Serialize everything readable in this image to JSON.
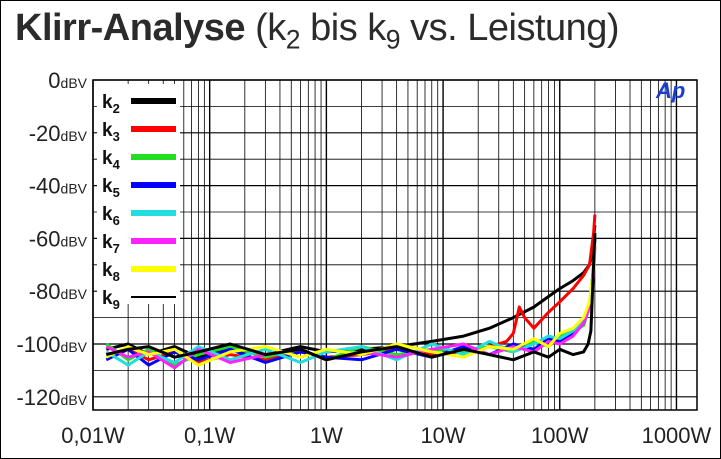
{
  "header": {
    "title_main": "Klirr-Analyse",
    "title_paren_open": "(k",
    "title_sub1": "2",
    "title_mid": " bis k",
    "title_sub2": "9",
    "title_tail": " vs. Leistung)"
  },
  "chart_data": {
    "type": "line",
    "title": "Klirr-Analyse (k2 bis k9 vs. Leistung)",
    "xscale": "log",
    "xlim": [
      0.01,
      1500
    ],
    "ylim": [
      -125,
      0
    ],
    "x_ticks": [
      {
        "value": 0.01,
        "label": "0,01W"
      },
      {
        "value": 0.1,
        "label": "0,1W"
      },
      {
        "value": 1,
        "label": "1W"
      },
      {
        "value": 10,
        "label": "10W"
      },
      {
        "value": 100,
        "label": "100W"
      },
      {
        "value": 1000,
        "label": "1000W"
      }
    ],
    "y_ticks": [
      {
        "value": 0,
        "num": "0",
        "unit": "dBV"
      },
      {
        "value": -20,
        "num": "-20",
        "unit": "dBV"
      },
      {
        "value": -40,
        "num": "-40",
        "unit": "dBV"
      },
      {
        "value": -60,
        "num": "-60",
        "unit": "dBV"
      },
      {
        "value": -80,
        "num": "-80",
        "unit": "dBV"
      },
      {
        "value": -100,
        "num": "-100",
        "unit": "dBV"
      },
      {
        "value": -120,
        "num": "-120",
        "unit": "dBV"
      }
    ],
    "grid": true,
    "legend_position": "top-left",
    "logo": "Ap",
    "series": [
      {
        "name": "k2",
        "label_base": "k",
        "label_sub": "2",
        "color": "#000000",
        "x": [
          0.013,
          0.02,
          0.03,
          0.05,
          0.08,
          0.15,
          0.3,
          0.6,
          1,
          2,
          4,
          8,
          15,
          25,
          40,
          60,
          80,
          100,
          130,
          160,
          180,
          190,
          195,
          200
        ],
        "y": [
          -102,
          -100,
          -104,
          -101,
          -105,
          -102,
          -104,
          -101,
          -103,
          -102,
          -101,
          -99,
          -97,
          -94,
          -90,
          -86,
          -82,
          -79,
          -76,
          -73,
          -70,
          -66,
          -60,
          -55
        ]
      },
      {
        "name": "k3",
        "label_base": "k",
        "label_sub": "3",
        "color": "#ff0000",
        "x": [
          0.013,
          0.02,
          0.03,
          0.05,
          0.08,
          0.15,
          0.3,
          0.6,
          1,
          2,
          4,
          8,
          15,
          25,
          35,
          40,
          45,
          50,
          60,
          80,
          100,
          130,
          160,
          180,
          195,
          200
        ],
        "y": [
          -104,
          -102,
          -106,
          -103,
          -107,
          -104,
          -106,
          -103,
          -105,
          -104,
          -102,
          -104,
          -103,
          -101,
          -99,
          -96,
          -86,
          -90,
          -94,
          -88,
          -84,
          -79,
          -74,
          -70,
          -58,
          -51
        ]
      },
      {
        "name": "k4",
        "label_base": "k",
        "label_sub": "4",
        "color": "#22dd22",
        "x": [
          0.013,
          0.02,
          0.03,
          0.05,
          0.08,
          0.15,
          0.3,
          0.6,
          1,
          2,
          4,
          8,
          15,
          25,
          40,
          60,
          80,
          100,
          130,
          160,
          180,
          195,
          200
        ],
        "y": [
          -100,
          -106,
          -102,
          -108,
          -104,
          -101,
          -105,
          -102,
          -106,
          -101,
          -104,
          -102,
          -103,
          -101,
          -103,
          -99,
          -101,
          -97,
          -95,
          -93,
          -86,
          -70,
          -58
        ]
      },
      {
        "name": "k5",
        "label_base": "k",
        "label_sub": "5",
        "color": "#0000ff",
        "x": [
          0.013,
          0.02,
          0.03,
          0.05,
          0.08,
          0.15,
          0.3,
          0.6,
          1,
          2,
          4,
          8,
          15,
          25,
          40,
          60,
          80,
          100,
          130,
          160,
          180,
          195,
          200
        ],
        "y": [
          -106,
          -102,
          -108,
          -103,
          -106,
          -102,
          -107,
          -103,
          -105,
          -106,
          -102,
          -105,
          -101,
          -104,
          -100,
          -102,
          -98,
          -99,
          -96,
          -92,
          -85,
          -72,
          -60
        ]
      },
      {
        "name": "k6",
        "label_base": "k",
        "label_sub": "6",
        "color": "#22dddd",
        "x": [
          0.013,
          0.02,
          0.03,
          0.05,
          0.08,
          0.15,
          0.3,
          0.6,
          1,
          2,
          4,
          8,
          15,
          25,
          40,
          60,
          80,
          100,
          130,
          160,
          180,
          195,
          200
        ],
        "y": [
          -103,
          -108,
          -103,
          -107,
          -101,
          -106,
          -102,
          -107,
          -103,
          -101,
          -106,
          -100,
          -104,
          -99,
          -103,
          -100,
          -97,
          -98,
          -95,
          -91,
          -84,
          -72,
          -62
        ]
      },
      {
        "name": "k7",
        "label_base": "k",
        "label_sub": "7",
        "color": "#ff22ff",
        "x": [
          0.013,
          0.02,
          0.03,
          0.05,
          0.08,
          0.15,
          0.3,
          0.6,
          1,
          2,
          4,
          8,
          15,
          25,
          40,
          60,
          80,
          100,
          130,
          160,
          180,
          195,
          200
        ],
        "y": [
          -101,
          -105,
          -103,
          -109,
          -102,
          -107,
          -104,
          -102,
          -106,
          -103,
          -105,
          -102,
          -100,
          -104,
          -101,
          -103,
          -99,
          -100,
          -97,
          -92,
          -86,
          -74,
          -63
        ]
      },
      {
        "name": "k8",
        "label_base": "k",
        "label_sub": "8",
        "color": "#ffff00",
        "x": [
          0.013,
          0.02,
          0.03,
          0.05,
          0.08,
          0.15,
          0.3,
          0.6,
          1,
          2,
          4,
          8,
          15,
          25,
          40,
          60,
          80,
          100,
          130,
          160,
          180,
          195,
          200
        ],
        "y": [
          -105,
          -101,
          -104,
          -102,
          -108,
          -103,
          -101,
          -105,
          -102,
          -104,
          -100,
          -103,
          -105,
          -101,
          -102,
          -98,
          -101,
          -96,
          -94,
          -90,
          -84,
          -72,
          -62
        ]
      },
      {
        "name": "k9",
        "label_base": "k",
        "label_sub": "9",
        "color": "#000000",
        "x": [
          0.013,
          0.02,
          0.03,
          0.05,
          0.08,
          0.15,
          0.3,
          0.6,
          1,
          2,
          4,
          8,
          15,
          25,
          40,
          60,
          80,
          100,
          130,
          160,
          175,
          185,
          195,
          200
        ],
        "y": [
          -104,
          -102,
          -101,
          -105,
          -103,
          -100,
          -104,
          -102,
          -106,
          -103,
          -101,
          -105,
          -102,
          -104,
          -106,
          -103,
          -105,
          -102,
          -104,
          -103,
          -100,
          -95,
          -70,
          -58
        ]
      }
    ]
  }
}
